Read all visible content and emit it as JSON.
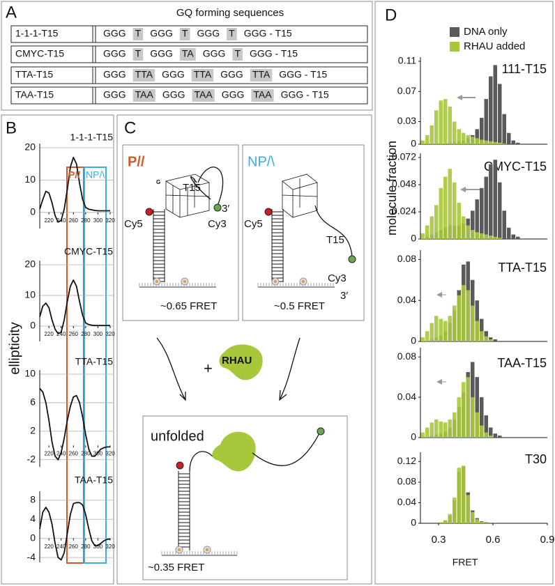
{
  "panel_labels": [
    "A",
    "B",
    "C",
    "D"
  ],
  "sequences": {
    "title": "GQ forming sequences",
    "rows": [
      {
        "name": "1-1-1-T15",
        "segments": [
          "GGG",
          "T",
          "GGG",
          "T",
          "GGG",
          "T",
          "GGG - T15"
        ]
      },
      {
        "name": "CMYC-T15",
        "segments": [
          "GGG",
          "T",
          "GGG",
          "TA",
          "GGG",
          "T",
          "GGG - T15"
        ]
      },
      {
        "name": "TTA-T15",
        "segments": [
          "GGG",
          "TTA",
          "GGG",
          "TTA",
          "GGG",
          "TTA",
          "GGG - T15"
        ]
      },
      {
        "name": "TAA-T15",
        "segments": [
          "GGG",
          "TAA",
          "GGG",
          "TAA",
          "GGG",
          "TAA",
          "GGG - T15"
        ]
      }
    ]
  },
  "schematic": {
    "parallel": {
      "state": "P//",
      "tail": "T15",
      "end": "3′",
      "donor": "Cy5",
      "acceptor": "Cy3",
      "fret": "~0.65 FRET"
    },
    "nonparallel": {
      "state": "NP/\\",
      "tail": "T15",
      "end": "3′",
      "donor": "Cy5",
      "acceptor": "Cy3",
      "fret": "~0.5 FRET"
    },
    "plus": "+",
    "protein": "RHAU",
    "unfolded": {
      "state": "unfolded",
      "fret": "~0.35 FRET"
    }
  },
  "chart_data": [
    {
      "type": "line",
      "title": "1-1-1-T15",
      "ylabel": "ellipticity",
      "annotations": [
        "P//",
        "NP/\\"
      ],
      "grid": true,
      "x": [
        205,
        210,
        215,
        220,
        225,
        230,
        235,
        240,
        245,
        250,
        255,
        260,
        265,
        270,
        275,
        280,
        285,
        290,
        295,
        300,
        305,
        310,
        315,
        320
      ],
      "series": [
        {
          "color": "#111111",
          "values": [
            1,
            4,
            6.5,
            6,
            3,
            -1,
            -3,
            -2.5,
            1,
            7,
            14,
            17,
            15,
            9,
            4,
            1.5,
            1,
            0.8,
            0.6,
            0.5,
            0.5,
            0.5,
            0.5,
            0.5
          ]
        }
      ],
      "xlim": [
        205,
        320
      ],
      "xticks": [
        220,
        240,
        260,
        280,
        300,
        320
      ],
      "ylim": [
        -5,
        20
      ],
      "yticks": [
        0,
        10,
        20
      ]
    },
    {
      "type": "line",
      "title": "CMYC-T15",
      "grid": true,
      "x": [
        205,
        210,
        215,
        220,
        225,
        230,
        235,
        240,
        245,
        250,
        255,
        260,
        265,
        270,
        275,
        280,
        285,
        290,
        295,
        300,
        305,
        310,
        315,
        320
      ],
      "series": [
        {
          "color": "#111111",
          "values": [
            3,
            6.5,
            7.5,
            6,
            2,
            -1,
            -2.5,
            -2,
            2,
            8,
            13,
            15,
            13,
            8,
            3.5,
            1,
            0.5,
            0.3,
            0.2,
            0.2,
            0.2,
            0.2,
            0.2,
            0.2
          ]
        }
      ],
      "xlim": [
        205,
        320
      ],
      "xticks": [
        220,
        240,
        260,
        280,
        300,
        320
      ],
      "ylim": [
        -5,
        20
      ],
      "yticks": [
        0,
        10,
        20
      ]
    },
    {
      "type": "line",
      "title": "TTA-T15",
      "grid": true,
      "x": [
        205,
        210,
        215,
        220,
        225,
        230,
        235,
        240,
        245,
        250,
        255,
        260,
        265,
        270,
        275,
        280,
        285,
        290,
        295,
        300,
        305,
        310,
        315,
        320
      ],
      "series": [
        {
          "color": "#111111",
          "values": [
            8,
            7.5,
            6,
            3.5,
            0.5,
            -1.5,
            -2,
            -1,
            1,
            3.5,
            5.5,
            6.8,
            7,
            6,
            4,
            1.5,
            -0.5,
            -1.5,
            -1.5,
            -1,
            -0.5,
            -0.3,
            -0.2,
            -0.2
          ]
        }
      ],
      "xlim": [
        205,
        320
      ],
      "xticks": [
        220,
        240,
        260,
        280,
        300,
        320
      ],
      "ylim": [
        -3,
        10
      ],
      "yticks": [
        -2,
        2,
        6,
        10
      ]
    },
    {
      "type": "line",
      "title": "TAA-T15",
      "grid": true,
      "x": [
        205,
        210,
        215,
        220,
        225,
        230,
        235,
        240,
        245,
        250,
        255,
        260,
        265,
        270,
        275,
        280,
        285,
        290,
        295,
        300,
        305,
        310,
        315,
        320
      ],
      "series": [
        {
          "color": "#111111",
          "values": [
            2,
            5.5,
            6.5,
            5.5,
            3,
            -1,
            -4,
            -4.5,
            -3,
            1,
            5,
            7.3,
            7.5,
            7.5,
            7,
            5,
            2,
            -0.5,
            -1.5,
            -1.5,
            -1,
            -0.5,
            -0.2,
            -0.1
          ]
        }
      ],
      "xlim": [
        205,
        320
      ],
      "xticks": [
        220,
        240,
        260,
        280,
        300,
        320
      ],
      "ylim": [
        -5,
        9
      ],
      "yticks": [
        -4,
        0,
        4,
        8
      ]
    },
    {
      "type": "histogram",
      "title": "111-T15",
      "ylabel": "molecule fraction",
      "legend": "top-right",
      "bins": [
        0.2,
        0.225,
        0.25,
        0.275,
        0.3,
        0.325,
        0.35,
        0.375,
        0.4,
        0.425,
        0.45,
        0.475,
        0.5,
        0.525,
        0.55,
        0.575,
        0.6,
        0.625,
        0.65,
        0.675,
        0.7,
        0.725,
        0.75,
        0.775,
        0.8,
        0.825,
        0.85,
        0.875,
        0.9
      ],
      "series": [
        {
          "name": "DNA only",
          "color": "#5a5a5a",
          "values": [
            0,
            0,
            0,
            0,
            0,
            0,
            0.002,
            0.003,
            0.004,
            0.005,
            0.008,
            0.012,
            0.02,
            0.035,
            0.06,
            0.09,
            0.105,
            0.08,
            0.04,
            0.015,
            0.005,
            0.002,
            0,
            0,
            0,
            0,
            0,
            0
          ]
        },
        {
          "name": "RHAU added",
          "color": "#a8c83c",
          "values": [
            0.005,
            0.012,
            0.025,
            0.045,
            0.058,
            0.06,
            0.05,
            0.03,
            0.02,
            0.015,
            0.012,
            0.01,
            0.008,
            0.006,
            0.005,
            0.004,
            0.003,
            0.002,
            0.001,
            0,
            0,
            0,
            0,
            0,
            0,
            0,
            0,
            0
          ]
        }
      ],
      "xlim": [
        0.2,
        0.9
      ],
      "ylim": [
        0,
        0.11
      ],
      "yticks": [
        0,
        0.03,
        0.07,
        0.11
      ]
    },
    {
      "type": "histogram",
      "title": "CMYC-T15",
      "bins": [
        0.2,
        0.225,
        0.25,
        0.275,
        0.3,
        0.325,
        0.35,
        0.375,
        0.4,
        0.425,
        0.45,
        0.475,
        0.5,
        0.525,
        0.55,
        0.575,
        0.6,
        0.625,
        0.65,
        0.675,
        0.7,
        0.725,
        0.75,
        0.775,
        0.8,
        0.825,
        0.85,
        0.875,
        0.9
      ],
      "series": [
        {
          "color": "#5a5a5a",
          "values": [
            0,
            0.002,
            0.004,
            0.006,
            0.008,
            0.01,
            0.012,
            0.012,
            0.012,
            0.014,
            0.018,
            0.025,
            0.035,
            0.045,
            0.055,
            0.066,
            0.07,
            0.05,
            0.025,
            0.01,
            0.004,
            0.002,
            0,
            0,
            0,
            0,
            0,
            0
          ]
        },
        {
          "color": "#a8c83c",
          "values": [
            0.005,
            0.012,
            0.02,
            0.03,
            0.045,
            0.055,
            0.062,
            0.05,
            0.032,
            0.02,
            0.012,
            0.008,
            0.006,
            0.005,
            0.004,
            0.003,
            0.002,
            0.001,
            0,
            0,
            0,
            0,
            0,
            0,
            0,
            0,
            0,
            0
          ]
        }
      ],
      "xlim": [
        0.2,
        0.9
      ],
      "ylim": [
        0,
        0.072
      ],
      "yticks": [
        0,
        0.024,
        0.048,
        0.072
      ]
    },
    {
      "type": "histogram",
      "title": "TTA-T15",
      "bins": [
        0.2,
        0.225,
        0.25,
        0.275,
        0.3,
        0.325,
        0.35,
        0.375,
        0.4,
        0.425,
        0.45,
        0.475,
        0.5,
        0.525,
        0.55,
        0.575,
        0.6,
        0.625,
        0.65,
        0.675,
        0.7,
        0.725,
        0.75,
        0.775,
        0.8,
        0.825,
        0.85,
        0.875,
        0.9
      ],
      "series": [
        {
          "color": "#5a5a5a",
          "values": [
            0,
            0,
            0.002,
            0.004,
            0.006,
            0.01,
            0.018,
            0.03,
            0.05,
            0.075,
            0.078,
            0.06,
            0.04,
            0.022,
            0.01,
            0.004,
            0.002,
            0,
            0,
            0,
            0,
            0,
            0,
            0,
            0,
            0,
            0,
            0
          ]
        },
        {
          "color": "#a8c83c",
          "values": [
            0.004,
            0.01,
            0.018,
            0.025,
            0.022,
            0.02,
            0.025,
            0.035,
            0.045,
            0.055,
            0.05,
            0.035,
            0.02,
            0.01,
            0.005,
            0.002,
            0,
            0,
            0,
            0,
            0,
            0,
            0,
            0,
            0,
            0,
            0,
            0
          ]
        }
      ],
      "xlim": [
        0.2,
        0.9
      ],
      "ylim": [
        0,
        0.085
      ],
      "yticks": [
        0,
        0.04,
        0.08
      ]
    },
    {
      "type": "histogram",
      "title": "TAA-T15",
      "bins": [
        0.2,
        0.225,
        0.25,
        0.275,
        0.3,
        0.325,
        0.35,
        0.375,
        0.4,
        0.425,
        0.45,
        0.475,
        0.5,
        0.525,
        0.55,
        0.575,
        0.6,
        0.625,
        0.65,
        0.675,
        0.7,
        0.725,
        0.75,
        0.775,
        0.8,
        0.825,
        0.85,
        0.875,
        0.9
      ],
      "series": [
        {
          "color": "#5a5a5a",
          "values": [
            0,
            0,
            0.002,
            0.003,
            0.004,
            0.006,
            0.01,
            0.018,
            0.03,
            0.045,
            0.065,
            0.075,
            0.06,
            0.04,
            0.022,
            0.01,
            0.004,
            0.002,
            0,
            0,
            0,
            0,
            0,
            0,
            0,
            0,
            0,
            0
          ]
        },
        {
          "color": "#a8c83c",
          "values": [
            0.005,
            0.01,
            0.015,
            0.018,
            0.016,
            0.015,
            0.018,
            0.025,
            0.04,
            0.055,
            0.06,
            0.04,
            0.025,
            0.012,
            0.005,
            0.002,
            0,
            0,
            0,
            0,
            0,
            0,
            0,
            0,
            0,
            0,
            0,
            0
          ]
        }
      ],
      "xlim": [
        0.2,
        0.9
      ],
      "ylim": [
        0,
        0.085
      ],
      "yticks": [
        0,
        0.04,
        0.08
      ]
    },
    {
      "type": "histogram",
      "title": "T30",
      "xlabel": "FRET",
      "bins": [
        0.2,
        0.225,
        0.25,
        0.275,
        0.3,
        0.325,
        0.35,
        0.375,
        0.4,
        0.425,
        0.45,
        0.475,
        0.5,
        0.525,
        0.55,
        0.575,
        0.6,
        0.625,
        0.65,
        0.675,
        0.7,
        0.725,
        0.75,
        0.775,
        0.8,
        0.825,
        0.85,
        0.875,
        0.9
      ],
      "series": [
        {
          "color": "#5a5a5a",
          "values": [
            0,
            0,
            0,
            0,
            0.002,
            0.005,
            0.015,
            0.045,
            0.1,
            0.11,
            0.06,
            0.025,
            0.01,
            0.004,
            0.002,
            0,
            0,
            0,
            0,
            0,
            0,
            0,
            0,
            0,
            0,
            0,
            0,
            0
          ]
        },
        {
          "color": "#a8c83c",
          "values": [
            0,
            0,
            0,
            0,
            0.002,
            0.006,
            0.018,
            0.05,
            0.108,
            0.112,
            0.055,
            0.022,
            0.008,
            0.003,
            0.001,
            0,
            0,
            0,
            0,
            0,
            0,
            0,
            0,
            0,
            0,
            0,
            0,
            0
          ]
        }
      ],
      "xlim": [
        0.2,
        0.9
      ],
      "xticks": [
        0.3,
        0.6,
        0.9
      ],
      "ylim": [
        0,
        0.13
      ],
      "yticks": [
        0,
        0.04,
        0.08,
        0.12
      ]
    }
  ]
}
